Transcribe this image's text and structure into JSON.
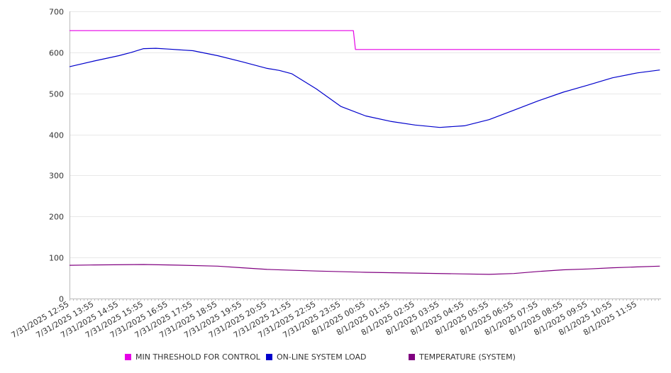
{
  "chart_data": {
    "type": "line",
    "y_ticks": [
      0,
      100,
      200,
      300,
      400,
      500,
      600,
      700
    ],
    "ylim": [
      0,
      700
    ],
    "x_tick_labels": [
      "7/31/2025 12:55",
      "7/31/2025 13:55",
      "7/31/2025 14:55",
      "7/31/2025 15:55",
      "7/31/2025 16:55",
      "7/31/2025 17:55",
      "7/31/2025 18:55",
      "7/31/2025 19:55",
      "7/31/2025 20:55",
      "7/31/2025 21:55",
      "7/31/2025 22:55",
      "7/31/2025 23:55",
      "8/1/2025 00:55",
      "8/1/2025 01:55",
      "8/1/2025 02:55",
      "8/1/2025 03:55",
      "8/1/2025 04:55",
      "8/1/2025 05:55",
      "8/1/2025 06:55",
      "8/1/2025 07:55",
      "8/1/2025 08:55",
      "8/1/2025 09:55",
      "8/1/2025 10:55",
      "8/1/2025 11:55"
    ],
    "grid": true,
    "legend_position": "bottom",
    "series": [
      {
        "name": "MIN THRESHOLD FOR CONTROL",
        "color": "#e600e6",
        "x": [
          "7/31/2025 12:55",
          "8/1/2025 00:25",
          "8/1/2025 00:30",
          "8/1/2025 12:50"
        ],
        "values": [
          653,
          653,
          607,
          607
        ]
      },
      {
        "name": "ON-LINE SYSTEM LOAD",
        "color": "#0000cc",
        "x": [
          "7/31/2025 12:55",
          "7/31/2025 13:55",
          "7/31/2025 14:55",
          "7/31/2025 15:25",
          "7/31/2025 15:55",
          "7/31/2025 16:25",
          "7/31/2025 16:55",
          "7/31/2025 17:55",
          "7/31/2025 18:55",
          "7/31/2025 19:55",
          "7/31/2025 20:55",
          "7/31/2025 21:25",
          "7/31/2025 21:55",
          "7/31/2025 22:55",
          "7/31/2025 23:55",
          "8/1/2025 00:55",
          "8/1/2025 01:55",
          "8/1/2025 02:55",
          "8/1/2025 03:55",
          "8/1/2025 04:55",
          "8/1/2025 05:55",
          "8/1/2025 06:55",
          "8/1/2025 07:55",
          "8/1/2025 08:55",
          "8/1/2025 09:55",
          "8/1/2025 10:55",
          "8/1/2025 11:55",
          "8/1/2025 12:50"
        ],
        "values": [
          565,
          579,
          592,
          600,
          609,
          610,
          608,
          604,
          592,
          577,
          561,
          556,
          548,
          511,
          468,
          445,
          432,
          423,
          417,
          421,
          436,
          459,
          482,
          503,
          520,
          538,
          550,
          557
        ]
      },
      {
        "name": "TEMPERATURE (SYSTEM)",
        "color": "#800080",
        "x": [
          "7/31/2025 12:55",
          "7/31/2025 13:55",
          "7/31/2025 15:55",
          "7/31/2025 16:55",
          "7/31/2025 18:55",
          "7/31/2025 19:55",
          "7/31/2025 20:55",
          "7/31/2025 22:55",
          "8/1/2025 00:55",
          "8/1/2025 02:55",
          "8/1/2025 04:55",
          "8/1/2025 05:55",
          "8/1/2025 06:55",
          "8/1/2025 07:55",
          "8/1/2025 08:55",
          "8/1/2025 09:55",
          "8/1/2025 10:55",
          "8/1/2025 11:55",
          "8/1/2025 12:50"
        ],
        "values": [
          81,
          82,
          83,
          82,
          79,
          75,
          71,
          67,
          64,
          62,
          60,
          59,
          61,
          66,
          70,
          72,
          75,
          77,
          79
        ]
      }
    ]
  }
}
